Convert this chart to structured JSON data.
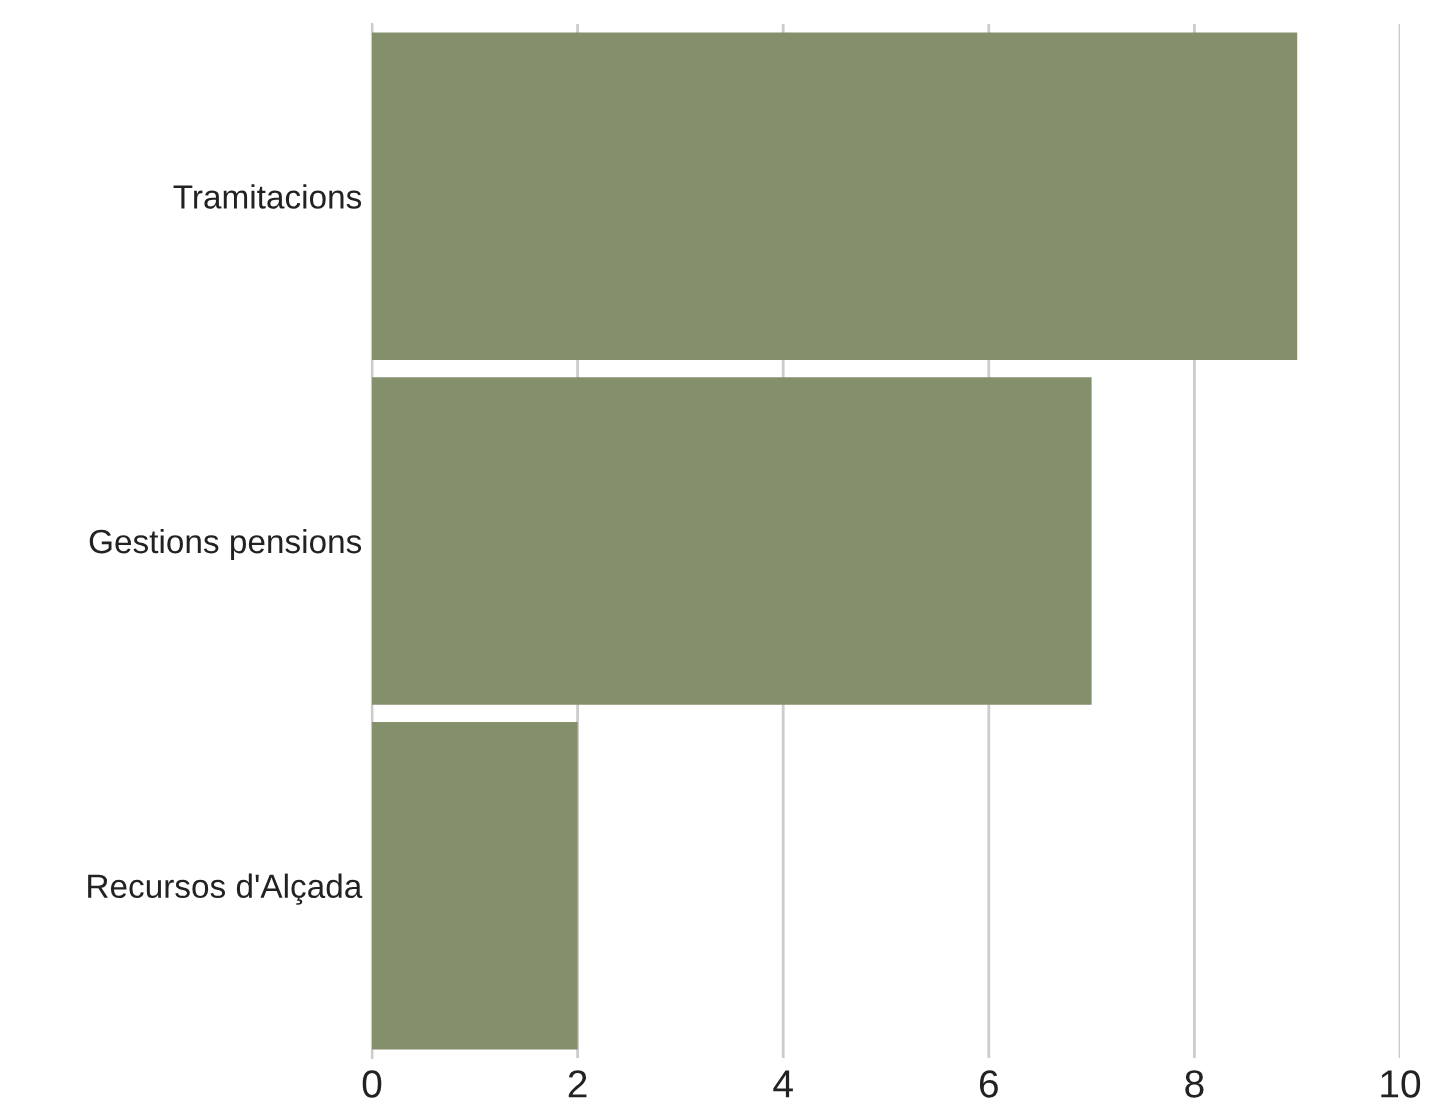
{
  "chart_data": {
    "type": "bar",
    "orientation": "horizontal",
    "categories": [
      "Tramitacions",
      "Gestions pensions",
      "Recursos d'Alçada"
    ],
    "values": [
      9,
      7,
      2
    ],
    "color": "#848f6b",
    "xlim": [
      0,
      10
    ],
    "xticks": [
      0,
      2,
      4,
      6,
      8,
      10
    ],
    "grid": "x"
  }
}
